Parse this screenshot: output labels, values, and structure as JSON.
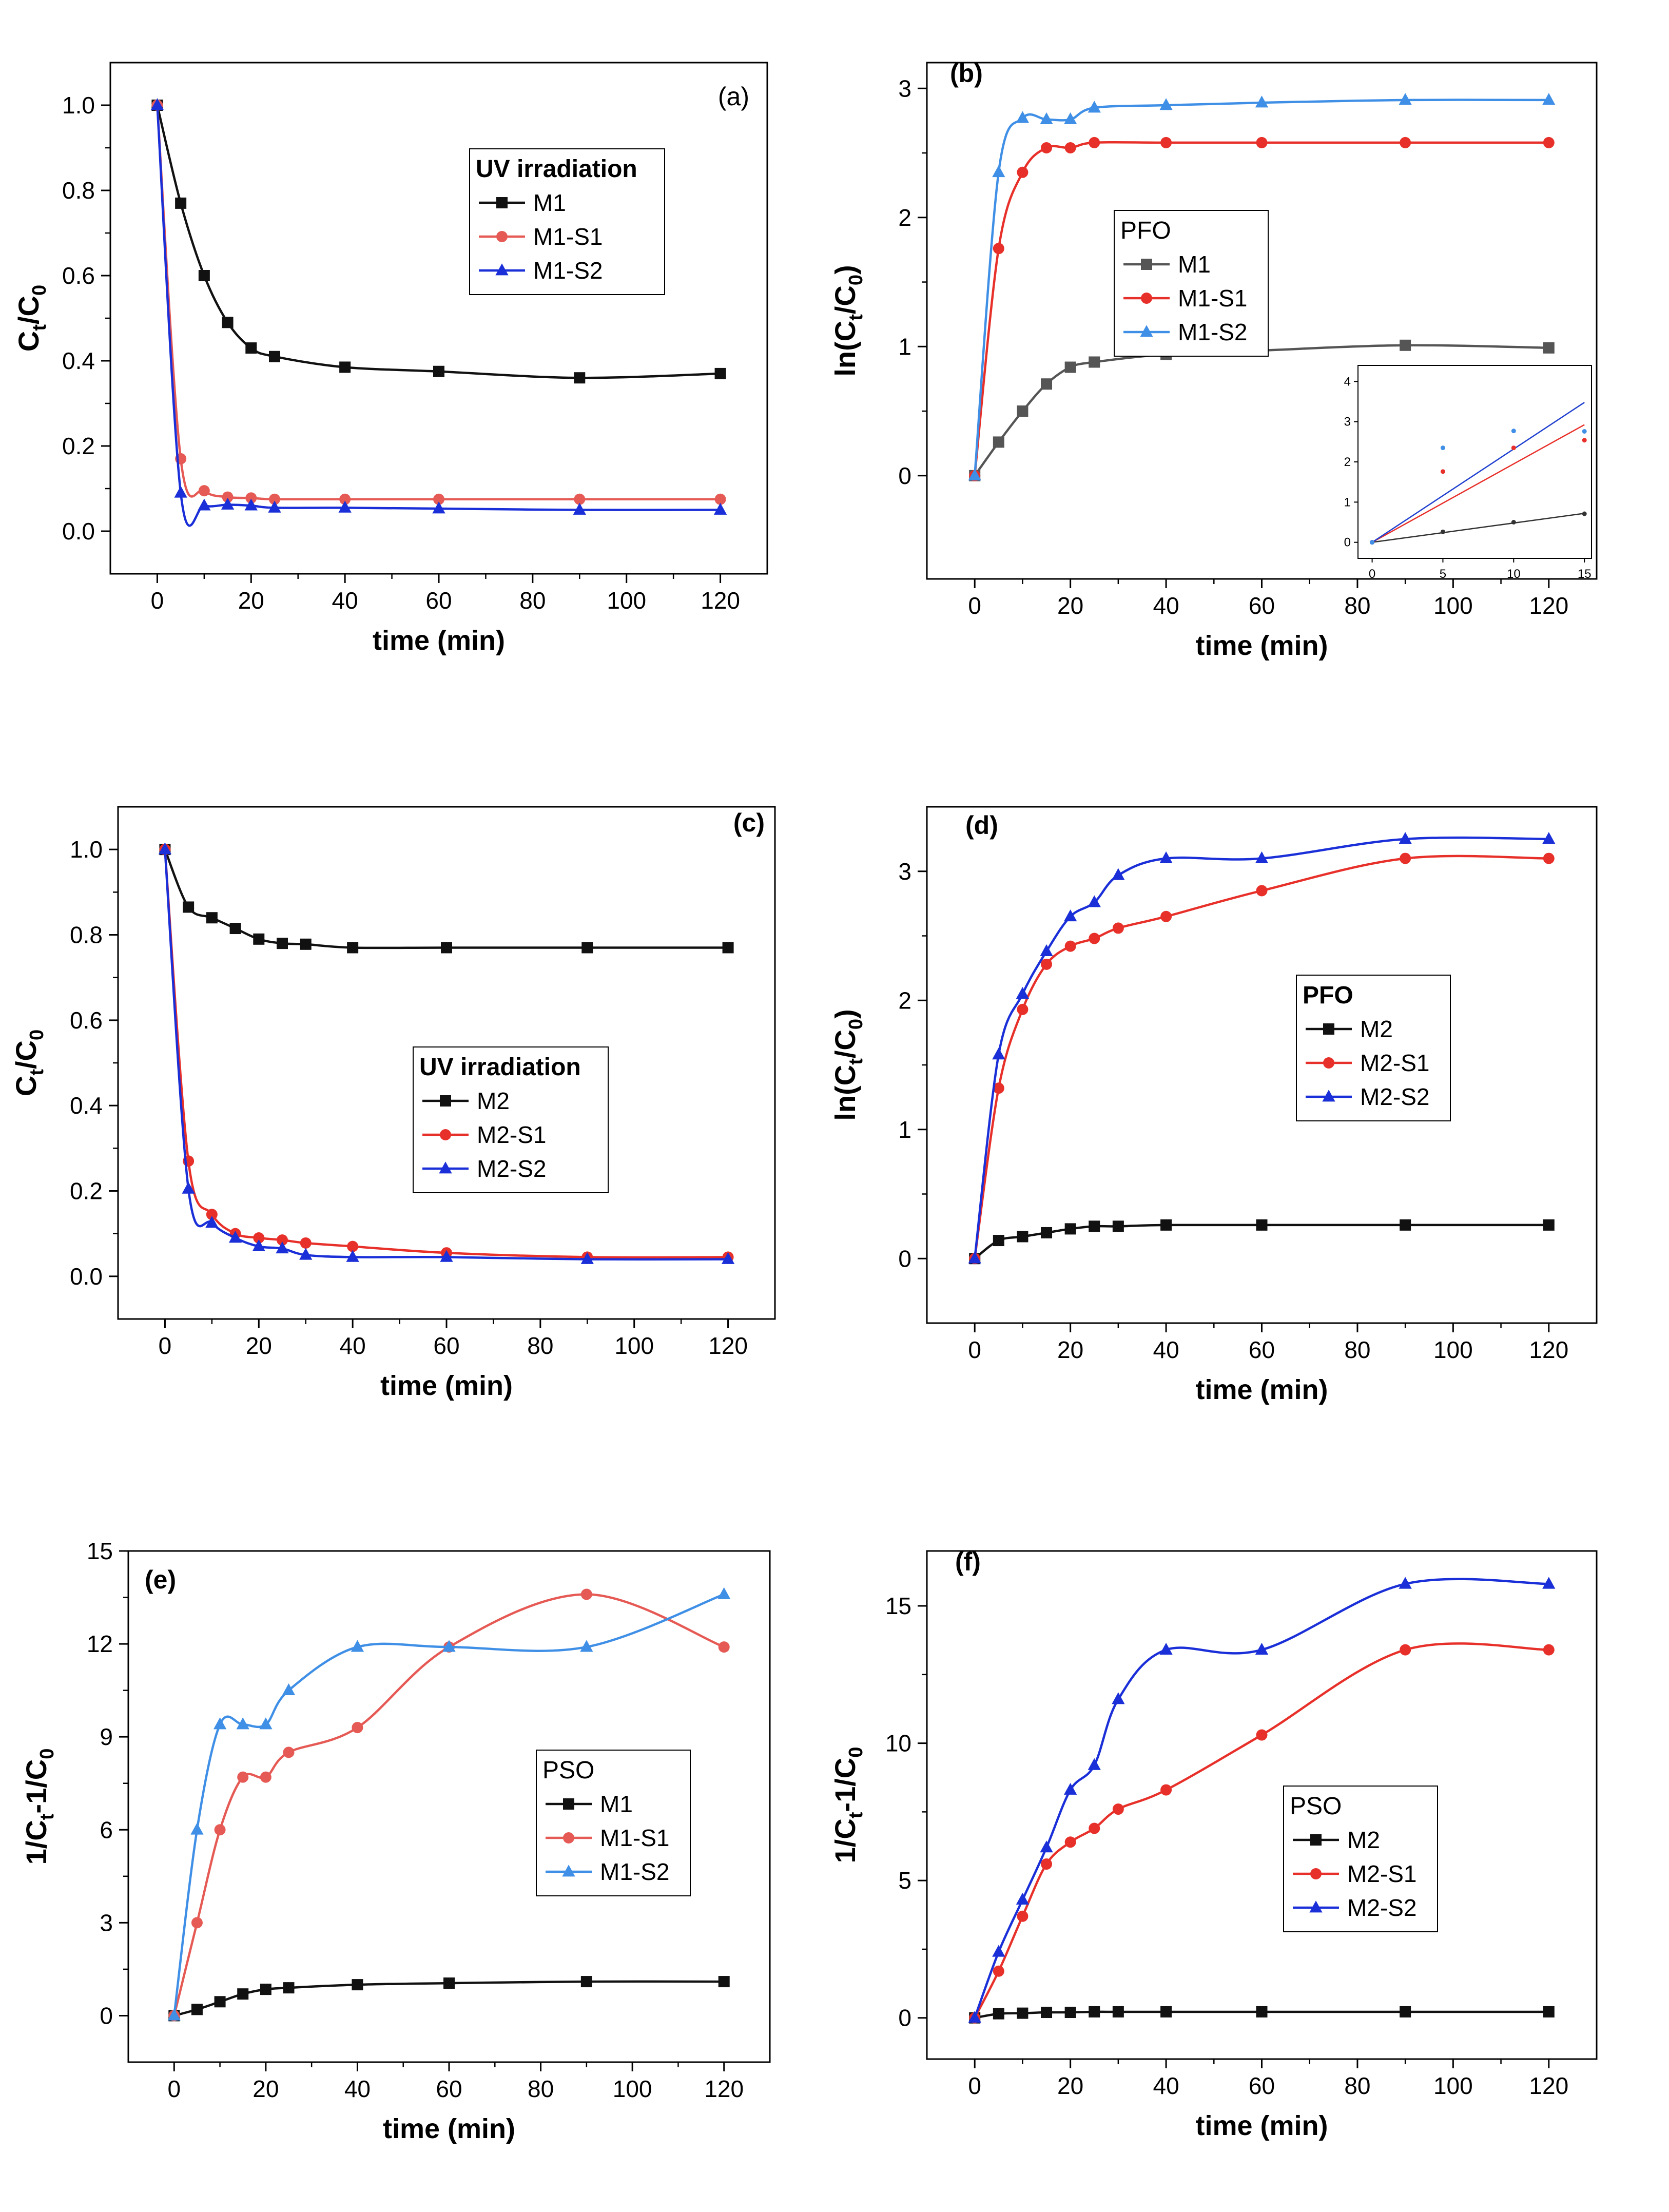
{
  "colors": {
    "black": "#111111",
    "red": "#e8302a",
    "red_light": "#e65a55",
    "blue": "#1a2fd8",
    "blue_light": "#3f8fe6"
  },
  "chart_data": [
    {
      "id": "a",
      "type": "line",
      "panel_label": "(a)",
      "label_bold": false,
      "xlabel": "time (min)",
      "ylabel_parts": [
        "C",
        "t",
        "/C",
        "0"
      ],
      "xlim": [
        -10,
        130
      ],
      "ylim": [
        -0.1,
        1.1
      ],
      "xticks": [
        0,
        20,
        40,
        60,
        80,
        100,
        120
      ],
      "xtick_labels": [
        "0",
        "20",
        "40",
        "60",
        "80",
        "100",
        "120"
      ],
      "yticks": [
        0,
        0.2,
        0.4,
        0.6,
        0.8,
        1.0
      ],
      "ytick_labels": [
        "0.0",
        "0.2",
        "0.4",
        "0.6",
        "0.8",
        "1.0"
      ],
      "legend_title": "UV irradiation",
      "legend_title_bold": true,
      "legend_pos": "center-right",
      "x": [
        0,
        5,
        10,
        15,
        20,
        25,
        40,
        60,
        90,
        120
      ],
      "series": [
        {
          "name": "M1",
          "marker": "square",
          "color": "#111111",
          "values": [
            1.0,
            0.77,
            0.6,
            0.49,
            0.43,
            0.41,
            0.385,
            0.375,
            0.36,
            0.37
          ]
        },
        {
          "name": "M1-S1",
          "marker": "circle",
          "color": "#e65a55",
          "values": [
            1.0,
            0.17,
            0.095,
            0.08,
            0.078,
            0.075,
            0.075,
            0.075,
            0.075,
            0.075
          ]
        },
        {
          "name": "M1-S2",
          "marker": "triangle",
          "color": "#1a2fd8",
          "values": [
            1.0,
            0.09,
            0.06,
            0.062,
            0.06,
            0.055,
            0.055,
            0.053,
            0.05,
            0.05
          ]
        }
      ]
    },
    {
      "id": "b",
      "type": "line",
      "panel_label": "(b)",
      "label_bold": true,
      "xlabel": "time (min)",
      "ylabel_parts": [
        "ln(C",
        "t",
        "/C",
        "0",
        ")"
      ],
      "xlim": [
        -10,
        130
      ],
      "ylim": [
        -0.8,
        3.2
      ],
      "xticks": [
        0,
        20,
        40,
        60,
        80,
        100,
        120
      ],
      "xtick_labels": [
        "0",
        "20",
        "40",
        "60",
        "80",
        "100",
        "120"
      ],
      "yticks": [
        0,
        1,
        2,
        3
      ],
      "ytick_labels": [
        "0",
        "1",
        "2",
        "3"
      ],
      "legend_title": "PFO",
      "legend_title_bold": false,
      "legend_pos": "center-left",
      "x": [
        0,
        5,
        10,
        15,
        20,
        25,
        40,
        60,
        90,
        120
      ],
      "series": [
        {
          "name": "M1",
          "marker": "square",
          "color": "#555555",
          "values": [
            0,
            0.26,
            0.5,
            0.71,
            0.84,
            0.88,
            0.94,
            0.97,
            1.01,
            0.99
          ]
        },
        {
          "name": "M1-S1",
          "marker": "circle",
          "color": "#e8302a",
          "values": [
            0,
            1.76,
            2.35,
            2.54,
            2.54,
            2.58,
            2.58,
            2.58,
            2.58,
            2.58
          ]
        },
        {
          "name": "M1-S2",
          "marker": "triangle",
          "color": "#3f8fe6",
          "values": [
            0,
            2.35,
            2.77,
            2.76,
            2.76,
            2.85,
            2.87,
            2.89,
            2.91,
            2.91
          ]
        }
      ],
      "inset": {
        "xlim": [
          -1,
          15.5
        ],
        "ylim": [
          -0.4,
          4.4
        ],
        "xticks": [
          0,
          5,
          10,
          15
        ],
        "xtick_labels": [
          "0",
          "5",
          "10",
          "15"
        ],
        "yticks": [
          0,
          1,
          2,
          3,
          4
        ],
        "ytick_labels": [
          "0",
          "1",
          "2",
          "3",
          "4"
        ],
        "points": [
          {
            "color": "#333333",
            "x": [
              0,
              5,
              10,
              15
            ],
            "y": [
              0,
              0.26,
              0.5,
              0.71
            ]
          },
          {
            "color": "#e8302a",
            "x": [
              0,
              5,
              10,
              15
            ],
            "y": [
              0,
              1.76,
              2.35,
              2.54
            ]
          },
          {
            "color": "#3f8fe6",
            "x": [
              0,
              5,
              10,
              15
            ],
            "y": [
              0,
              2.35,
              2.77,
              2.76
            ]
          }
        ],
        "fits": [
          {
            "color": "#333333",
            "slope": 0.048
          },
          {
            "color": "#e8302a",
            "slope": 0.195
          },
          {
            "color": "#2040d0",
            "slope": 0.232
          }
        ]
      }
    },
    {
      "id": "c",
      "type": "line",
      "panel_label": "(c)",
      "label_bold": true,
      "xlabel": "time (min)",
      "ylabel_parts": [
        "C",
        "t",
        "/C",
        "0"
      ],
      "xlim": [
        -10,
        130
      ],
      "ylim": [
        -0.1,
        1.1
      ],
      "xticks": [
        0,
        20,
        40,
        60,
        80,
        100,
        120
      ],
      "xtick_labels": [
        "0",
        "20",
        "40",
        "60",
        "80",
        "100",
        "120"
      ],
      "yticks": [
        0,
        0.2,
        0.4,
        0.6,
        0.8,
        1.0
      ],
      "ytick_labels": [
        "0.0",
        "0.2",
        "0.4",
        "0.6",
        "0.8",
        "1.0"
      ],
      "legend_title": "UV irradiation",
      "legend_title_bold": true,
      "legend_pos": "center",
      "x": [
        0,
        5,
        10,
        15,
        20,
        25,
        30,
        40,
        60,
        90,
        120
      ],
      "series": [
        {
          "name": "M2",
          "marker": "square",
          "color": "#111111",
          "values": [
            1.0,
            0.865,
            0.84,
            0.815,
            0.79,
            0.78,
            0.778,
            0.77,
            0.77,
            0.77,
            0.77
          ]
        },
        {
          "name": "M2-S1",
          "marker": "circle",
          "color": "#e8302a",
          "values": [
            1.0,
            0.27,
            0.145,
            0.1,
            0.09,
            0.085,
            0.078,
            0.07,
            0.055,
            0.045,
            0.045
          ]
        },
        {
          "name": "M2-S2",
          "marker": "triangle",
          "color": "#1a2fd8",
          "values": [
            1.0,
            0.205,
            0.125,
            0.09,
            0.07,
            0.065,
            0.05,
            0.045,
            0.045,
            0.04,
            0.04
          ]
        }
      ]
    },
    {
      "id": "d",
      "type": "line",
      "panel_label": "(d)",
      "label_bold": true,
      "xlabel": "time (min)",
      "ylabel_parts": [
        "ln(C",
        "t",
        "/C",
        "0",
        ")"
      ],
      "xlim": [
        -10,
        130
      ],
      "ylim": [
        -0.5,
        3.5
      ],
      "xticks": [
        0,
        20,
        40,
        60,
        80,
        100,
        120
      ],
      "xtick_labels": [
        "0",
        "20",
        "40",
        "60",
        "80",
        "100",
        "120"
      ],
      "yticks": [
        0,
        1,
        2,
        3
      ],
      "ytick_labels": [
        "0",
        "1",
        "2",
        "3"
      ],
      "legend_title": "PFO",
      "legend_title_bold": true,
      "legend_pos": "center-right",
      "x": [
        0,
        5,
        10,
        15,
        20,
        25,
        30,
        40,
        60,
        90,
        120
      ],
      "series": [
        {
          "name": "M2",
          "marker": "square",
          "color": "#111111",
          "values": [
            0,
            0.14,
            0.17,
            0.2,
            0.23,
            0.25,
            0.25,
            0.26,
            0.26,
            0.26,
            0.26
          ]
        },
        {
          "name": "M2-S1",
          "marker": "circle",
          "color": "#e8302a",
          "values": [
            0,
            1.32,
            1.93,
            2.28,
            2.42,
            2.48,
            2.56,
            2.65,
            2.85,
            3.1,
            3.1
          ]
        },
        {
          "name": "M2-S2",
          "marker": "triangle",
          "color": "#1a2fd8",
          "values": [
            0,
            1.58,
            2.05,
            2.38,
            2.65,
            2.76,
            2.97,
            3.1,
            3.1,
            3.25,
            3.25
          ]
        }
      ]
    },
    {
      "id": "e",
      "type": "line",
      "panel_label": "(e)",
      "label_bold": true,
      "xlabel": "time (min)",
      "ylabel_parts": [
        "1/C",
        "t",
        "-1/C",
        "0"
      ],
      "xlim": [
        -10,
        130
      ],
      "ylim": [
        -1.5,
        15
      ],
      "xticks": [
        0,
        20,
        40,
        60,
        80,
        100,
        120
      ],
      "xtick_labels": [
        "0",
        "20",
        "40",
        "60",
        "80",
        "100",
        "120"
      ],
      "yticks": [
        0,
        3,
        6,
        9,
        12,
        15
      ],
      "ytick_labels": [
        "0",
        "3",
        "6",
        "9",
        "12",
        "15"
      ],
      "legend_title": "PSO",
      "legend_title_bold": false,
      "legend_pos": "center-right",
      "x": [
        0,
        5,
        10,
        15,
        20,
        25,
        40,
        60,
        90,
        120
      ],
      "series": [
        {
          "name": "M1",
          "marker": "square",
          "color": "#111111",
          "values": [
            0,
            0.2,
            0.45,
            0.7,
            0.85,
            0.9,
            1.0,
            1.05,
            1.1,
            1.1
          ]
        },
        {
          "name": "M1-S1",
          "marker": "circle",
          "color": "#e65a55",
          "values": [
            0,
            3.0,
            6.0,
            7.7,
            7.7,
            8.5,
            9.3,
            11.9,
            13.6,
            11.9
          ]
        },
        {
          "name": "M1-S2",
          "marker": "triangle",
          "color": "#3f8fe6",
          "values": [
            0,
            6.0,
            9.4,
            9.4,
            9.4,
            10.5,
            11.9,
            11.9,
            11.9,
            13.6
          ]
        }
      ]
    },
    {
      "id": "f",
      "type": "line",
      "panel_label": "(f)",
      "label_bold": true,
      "xlabel": "time (min)",
      "ylabel_parts": [
        "1/C",
        "t",
        "-1/C",
        "0"
      ],
      "xlim": [
        -10,
        130
      ],
      "ylim": [
        -1.5,
        17
      ],
      "xticks": [
        0,
        20,
        40,
        60,
        80,
        100,
        120
      ],
      "xtick_labels": [
        "0",
        "20",
        "40",
        "60",
        "80",
        "100",
        "120"
      ],
      "yticks": [
        0,
        5,
        10,
        15
      ],
      "ytick_labels": [
        "0",
        "5",
        "10",
        "15"
      ],
      "legend_title": "PSO",
      "legend_title_bold": false,
      "legend_pos": "center-left",
      "x": [
        0,
        5,
        10,
        15,
        20,
        25,
        30,
        40,
        60,
        90,
        120
      ],
      "series": [
        {
          "name": "M2",
          "marker": "square",
          "color": "#111111",
          "values": [
            0,
            0.15,
            0.17,
            0.2,
            0.2,
            0.22,
            0.22,
            0.22,
            0.22,
            0.22,
            0.22
          ]
        },
        {
          "name": "M2-S1",
          "marker": "circle",
          "color": "#e8302a",
          "values": [
            0,
            1.7,
            3.7,
            5.6,
            6.4,
            6.9,
            7.6,
            8.3,
            10.3,
            13.4,
            13.4
          ]
        },
        {
          "name": "M2-S2",
          "marker": "triangle",
          "color": "#1a2fd8",
          "values": [
            0,
            2.4,
            4.3,
            6.2,
            8.3,
            9.2,
            11.6,
            13.4,
            13.4,
            15.8,
            15.8
          ]
        }
      ]
    }
  ]
}
